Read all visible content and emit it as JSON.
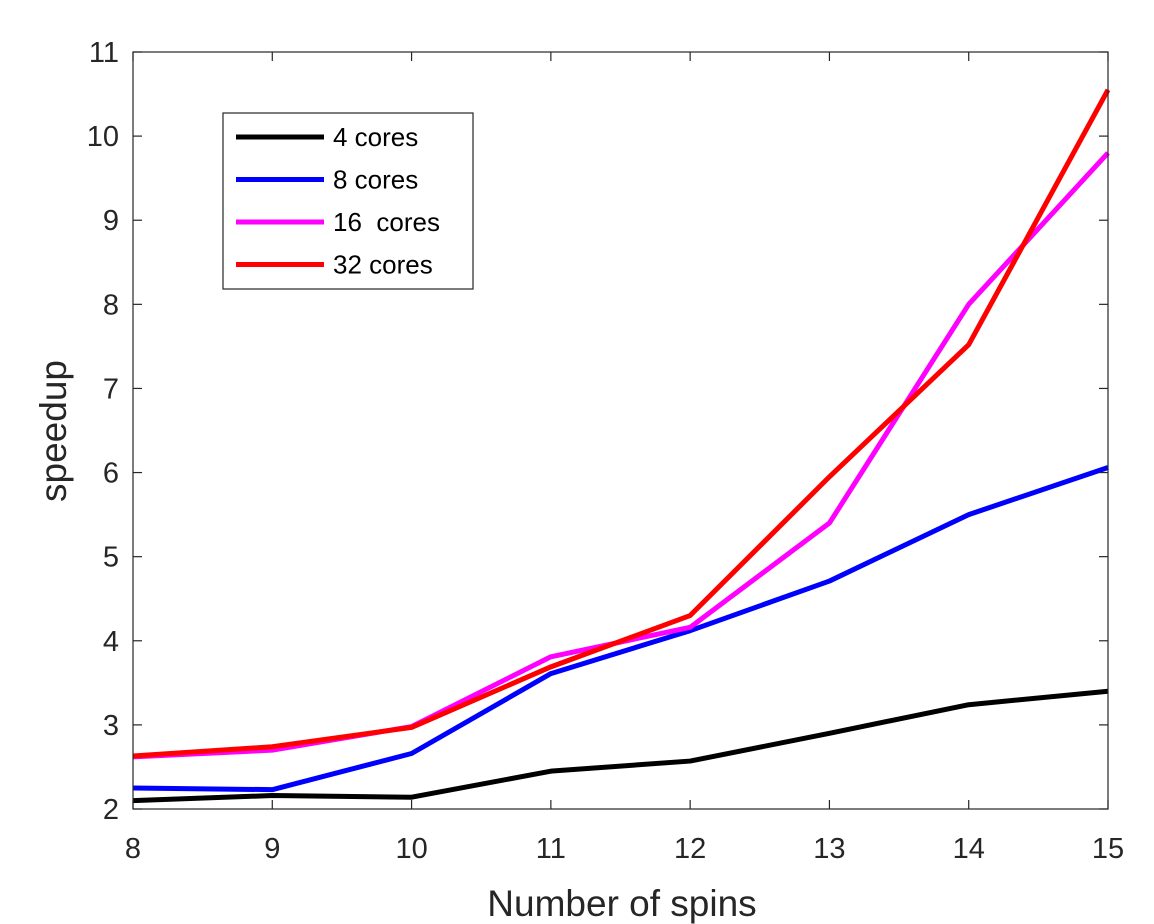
{
  "chart_data": {
    "type": "line",
    "title": "",
    "xlabel": "Number of spins",
    "ylabel": "speedup",
    "xlim": [
      8,
      15
    ],
    "ylim": [
      2,
      11
    ],
    "xticks": [
      "8",
      "9",
      "10",
      "11",
      "12",
      "13",
      "14",
      "15"
    ],
    "yticks": [
      "2",
      "3",
      "4",
      "5",
      "6",
      "7",
      "8",
      "9",
      "10",
      "11"
    ],
    "grid": false,
    "legend_position": "top-left",
    "x": [
      8,
      9,
      10,
      11,
      12,
      13,
      14,
      15
    ],
    "series": [
      {
        "name": "4 cores",
        "color": "#000000",
        "values": [
          2.1,
          2.16,
          2.14,
          2.45,
          2.57,
          2.9,
          3.24,
          3.4
        ]
      },
      {
        "name": "8 cores",
        "color": "#0000ff",
        "values": [
          2.25,
          2.23,
          2.66,
          3.61,
          4.12,
          4.71,
          5.5,
          6.06
        ]
      },
      {
        "name": "16  cores",
        "color": "#ff00ff",
        "values": [
          2.62,
          2.7,
          2.98,
          3.81,
          4.16,
          5.4,
          8.0,
          9.8
        ]
      },
      {
        "name": "32 cores",
        "color": "#ff0000",
        "values": [
          2.63,
          2.74,
          2.97,
          3.69,
          4.3,
          5.95,
          7.52,
          10.55
        ]
      }
    ]
  }
}
